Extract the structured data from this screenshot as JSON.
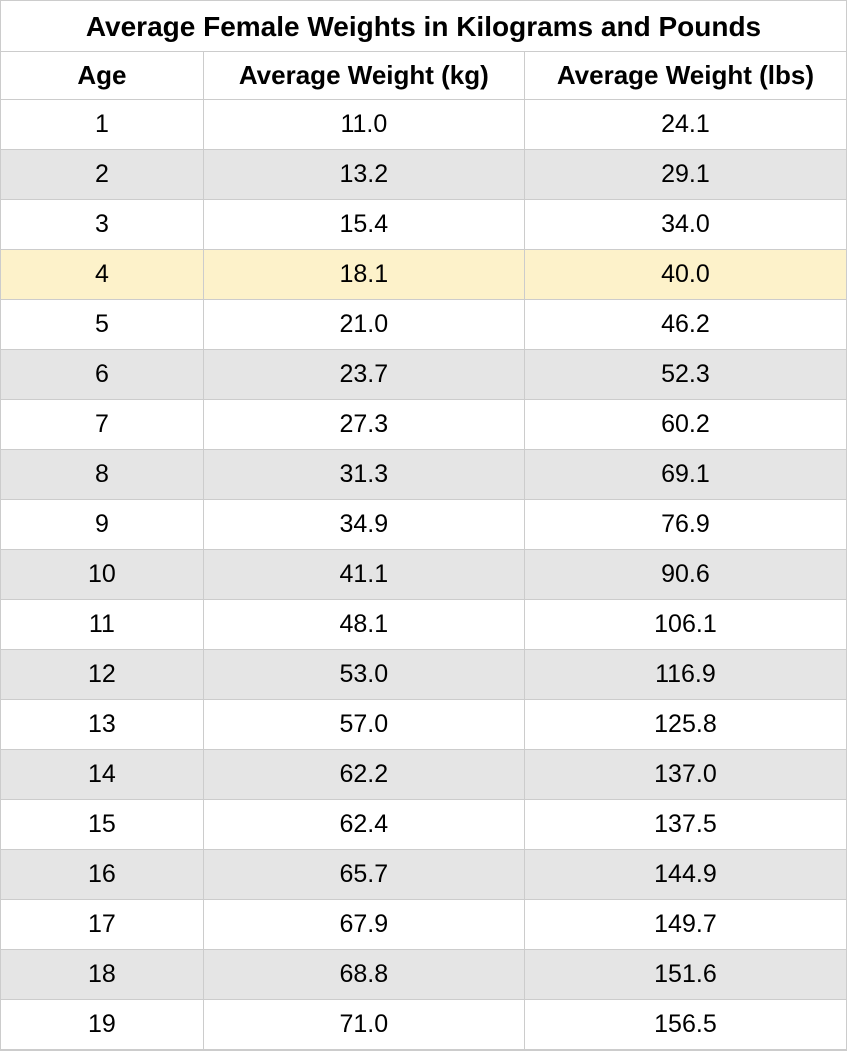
{
  "table": {
    "title": "Average Female Weights in Kilograms and Pounds",
    "title_fontsize": 28,
    "header_fontsize": 26,
    "cell_fontsize": 25,
    "columns": [
      "Age",
      "Average Weight (kg)",
      "Average Weight (lbs)"
    ],
    "column_widths_pct": [
      24,
      38,
      38
    ],
    "rows": [
      [
        "1",
        "11.0",
        "24.1"
      ],
      [
        "2",
        "13.2",
        "29.1"
      ],
      [
        "3",
        "15.4",
        "34.0"
      ],
      [
        "4",
        "18.1",
        "40.0"
      ],
      [
        "5",
        "21.0",
        "46.2"
      ],
      [
        "6",
        "23.7",
        "52.3"
      ],
      [
        "7",
        "27.3",
        "60.2"
      ],
      [
        "8",
        "31.3",
        "69.1"
      ],
      [
        "9",
        "34.9",
        "76.9"
      ],
      [
        "10",
        "41.1",
        "90.6"
      ],
      [
        "11",
        "48.1",
        "106.1"
      ],
      [
        "12",
        "53.0",
        "116.9"
      ],
      [
        "13",
        "57.0",
        "125.8"
      ],
      [
        "14",
        "62.2",
        "137.0"
      ],
      [
        "15",
        "62.4",
        "137.5"
      ],
      [
        "16",
        "65.7",
        "144.9"
      ],
      [
        "17",
        "67.9",
        "149.7"
      ],
      [
        "18",
        "68.8",
        "151.6"
      ],
      [
        "19",
        "71.0",
        "156.5"
      ]
    ],
    "highlighted_row_index": 3,
    "colors": {
      "background": "#ffffff",
      "alt_row_background": "#e5e5e5",
      "highlight_background": "#fdf2ca",
      "border": "#cccccc",
      "text": "#000000"
    }
  }
}
